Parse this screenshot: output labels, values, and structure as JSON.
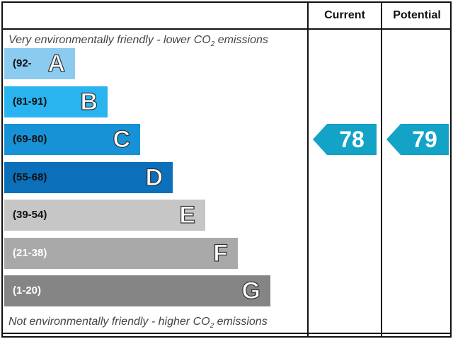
{
  "header": {
    "current_label": "Current",
    "potential_label": "Potential"
  },
  "captions": {
    "top_prefix": "Very environmentally friendly - lower CO",
    "top_sub": "2",
    "top_suffix": " emissions",
    "bottom_prefix": "Not environmentally friendly - higher CO",
    "bottom_sub": "2",
    "bottom_suffix": " emissions"
  },
  "chart_data": {
    "type": "bar",
    "bands": [
      {
        "letter": "A",
        "range": "(92-",
        "color": "#8ccbf0",
        "text_color": "#111111",
        "width_units": 1
      },
      {
        "letter": "B",
        "range": "(81-91)",
        "color": "#29b4ef",
        "text_color": "#111111",
        "width_units": 2
      },
      {
        "letter": "C",
        "range": "(69-80)",
        "color": "#1892d6",
        "text_color": "#111111",
        "width_units": 3
      },
      {
        "letter": "D",
        "range": "(55-68)",
        "color": "#0c6fba",
        "text_color": "#111111",
        "width_units": 4
      },
      {
        "letter": "E",
        "range": "(39-54)",
        "color": "#c6c6c6",
        "text_color": "#111111",
        "width_units": 5
      },
      {
        "letter": "F",
        "range": "(21-38)",
        "color": "#a9a9a9",
        "text_color": "#ffffff",
        "width_units": 6
      },
      {
        "letter": "G",
        "range": "(1-20)",
        "color": "#858585",
        "text_color": "#ffffff",
        "width_units": 7
      }
    ],
    "current": {
      "value": 78,
      "band": "C",
      "color": "#13a3c6"
    },
    "potential": {
      "value": 79,
      "band": "C",
      "color": "#13a3c6"
    }
  }
}
